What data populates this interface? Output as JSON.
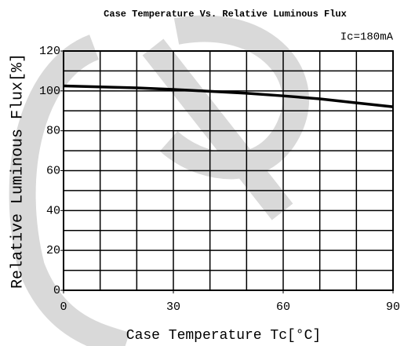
{
  "chart_data": {
    "type": "line",
    "title": "Case Temperature Vs. Relative Luminous Flux",
    "annotation": "Ic=180mA",
    "xlabel": "Case Temperature Tc[°C]",
    "ylabel": "Relative Luminous Flux[%]",
    "x": [
      0,
      10,
      20,
      30,
      40,
      50,
      60,
      70,
      80,
      90
    ],
    "series": [
      {
        "name": "Ic=180mA",
        "color": "#000000",
        "values": [
          102.5,
          102,
          101.5,
          100.7,
          99.8,
          98.8,
          97.5,
          96,
          94,
          92
        ]
      }
    ],
    "xlim": [
      0,
      90
    ],
    "xticks": [
      0,
      30,
      60,
      90
    ],
    "ylim": [
      0,
      120
    ],
    "yticks": [
      0,
      20,
      40,
      60,
      80,
      100,
      120
    ],
    "xgrid": [
      0,
      10,
      20,
      30,
      40,
      50,
      60,
      70,
      80,
      90
    ],
    "ygrid": [
      0,
      10,
      20,
      30,
      40,
      50,
      60,
      70,
      80,
      90,
      100,
      110,
      120
    ],
    "grid": true
  }
}
